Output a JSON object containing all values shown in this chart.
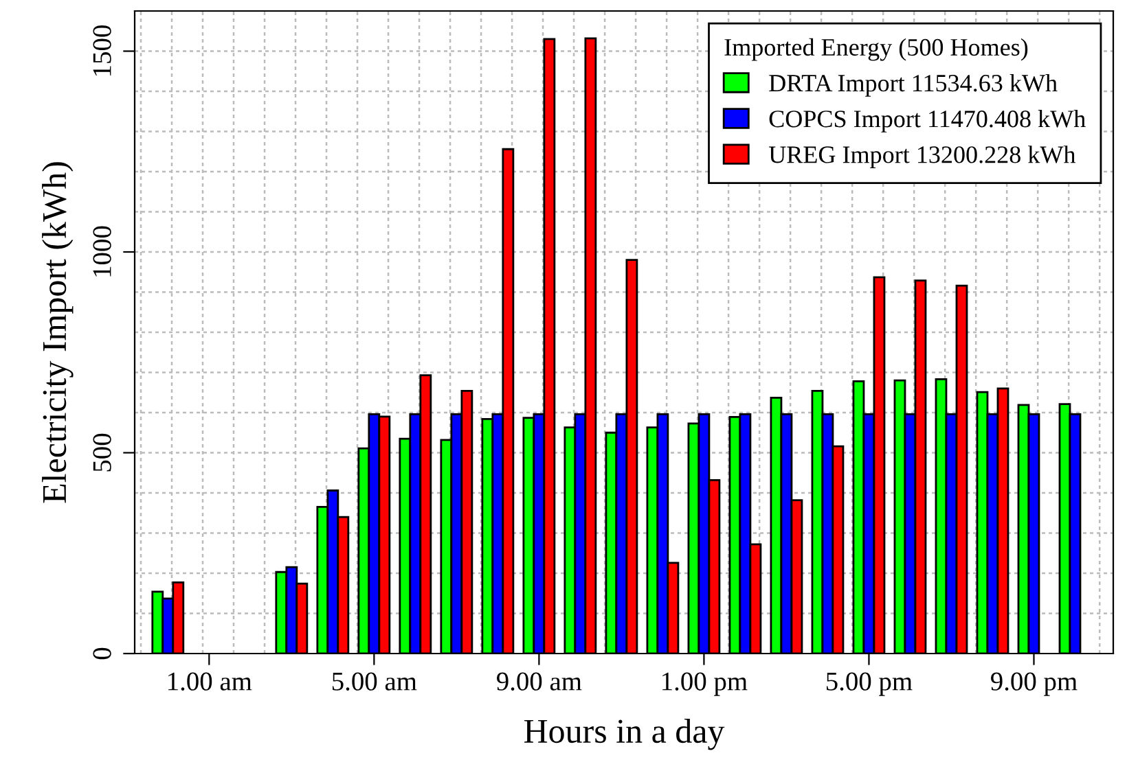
{
  "chart_data": {
    "type": "bar",
    "xlabel": "Hours in a day",
    "ylabel": "Electricity Import (kWh)",
    "legend_title": "Imported Energy (500 Homes)",
    "categories": [
      null,
      "1.00 am",
      null,
      null,
      null,
      "5.00 am",
      null,
      null,
      null,
      "9.00 am",
      null,
      null,
      null,
      "1.00 pm",
      null,
      null,
      null,
      "5.00 pm",
      null,
      null,
      null,
      "9.00 pm",
      null
    ],
    "series": [
      {
        "name": "DRTA Import 11534.63 kWh",
        "color": "#00ff00",
        "values": [
          154,
          null,
          null,
          203,
          365,
          511,
          535,
          532,
          584,
          587,
          563,
          550,
          563,
          573,
          589,
          637,
          654,
          678,
          680,
          683,
          651,
          619,
          621
        ]
      },
      {
        "name": "COPCS Import 11470.408 kWh",
        "color": "#0000ff",
        "values": [
          137,
          null,
          null,
          215,
          406,
          596,
          596,
          596,
          596,
          596,
          596,
          596,
          596,
          596,
          596,
          596,
          596,
          596,
          596,
          596,
          596,
          596,
          596
        ]
      },
      {
        "name": "UREG Import 13200.228 kWh",
        "color": "#ff0000",
        "values": [
          177,
          null,
          null,
          174,
          340,
          590,
          693,
          654,
          1256,
          1530,
          1532,
          980,
          226,
          432,
          272,
          382,
          516,
          937,
          929,
          916,
          660,
          null,
          null
        ]
      }
    ],
    "ylim": [
      0,
      1600
    ],
    "yticks": [
      0,
      500,
      1000,
      1500
    ],
    "grid": true,
    "legend": "top right"
  }
}
